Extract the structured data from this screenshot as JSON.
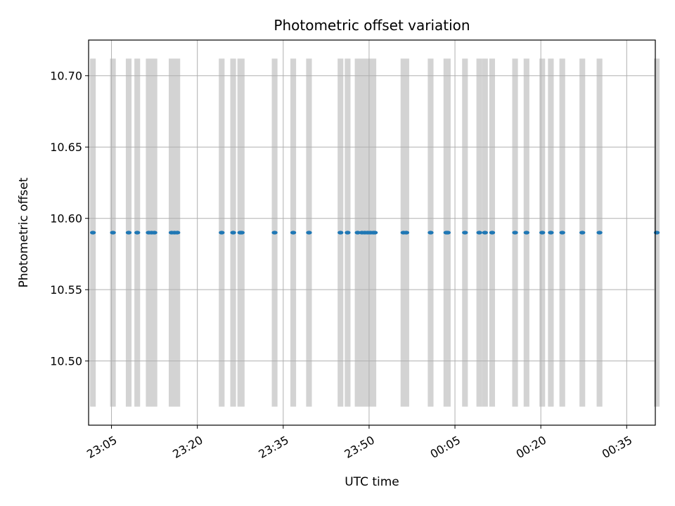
{
  "chart_data": {
    "type": "scatter",
    "title": "Photometric offset variation",
    "xlabel": "UTC time",
    "ylabel": "Photometric offset",
    "x_tick_labels": [
      "23:05",
      "23:20",
      "23:35",
      "23:50",
      "00:05",
      "00:20",
      "00:35"
    ],
    "x_ticks_minutes": [
      1385,
      1400,
      1415,
      1430,
      1445,
      1460,
      1475
    ],
    "y_tick_labels": [
      "10.50",
      "10.55",
      "10.60",
      "10.65",
      "10.70"
    ],
    "y_ticks": [
      10.5,
      10.55,
      10.6,
      10.65,
      10.7
    ],
    "xlim": [
      "23:01",
      "00:40"
    ],
    "ylim": [
      10.455,
      10.725
    ],
    "grid": true,
    "series": [
      {
        "x": [
          "23:01:45",
          "23:05:15",
          "23:08:00",
          "23:09:30",
          "23:11:30",
          "23:12:00",
          "23:12:30",
          "23:15:30",
          "23:16:00",
          "23:16:30",
          "23:24:15",
          "23:26:15",
          "23:27:30",
          "23:27:45",
          "23:33:30",
          "23:36:45",
          "23:39:30",
          "23:45:00",
          "23:46:15",
          "23:48:00",
          "23:48:45",
          "23:49:15",
          "23:49:45",
          "23:50:15",
          "23:50:45",
          "23:51:00",
          "23:56:00",
          "23:56:30",
          "00:00:45",
          "00:03:30",
          "00:03:45",
          "00:06:45",
          "00:09:15",
          "00:10:15",
          "00:11:30",
          "00:15:30",
          "00:17:30",
          "00:20:15",
          "00:21:45",
          "00:23:45",
          "00:27:15",
          "00:30:15",
          "00:40:15"
        ],
        "y": [
          10.59,
          10.59,
          10.59,
          10.59,
          10.59,
          10.59,
          10.59,
          10.59,
          10.59,
          10.59,
          10.59,
          10.59,
          10.59,
          10.59,
          10.59,
          10.59,
          10.59,
          10.59,
          10.59,
          10.59,
          10.59,
          10.59,
          10.59,
          10.59,
          10.59,
          10.59,
          10.59,
          10.59,
          10.59,
          10.59,
          10.59,
          10.59,
          10.59,
          10.59,
          10.59,
          10.59,
          10.59,
          10.59,
          10.59,
          10.59,
          10.59,
          10.59,
          10.59
        ],
        "color": "#1f77b4"
      }
    ],
    "shaded_intervals": [
      [
        "23:01:15",
        "23:02:15"
      ],
      [
        "23:04:45",
        "23:05:45"
      ],
      [
        "23:07:30",
        "23:08:30"
      ],
      [
        "23:09:00",
        "23:10:00"
      ],
      [
        "23:11:00",
        "23:13:00"
      ],
      [
        "23:15:00",
        "23:17:00"
      ],
      [
        "23:23:45",
        "23:24:45"
      ],
      [
        "23:25:45",
        "23:26:45"
      ],
      [
        "23:27:00",
        "23:28:15"
      ],
      [
        "23:33:00",
        "23:34:00"
      ],
      [
        "23:36:15",
        "23:37:15"
      ],
      [
        "23:39:00",
        "23:40:00"
      ],
      [
        "23:44:30",
        "23:45:30"
      ],
      [
        "23:45:45",
        "23:46:45"
      ],
      [
        "23:47:30",
        "23:51:15"
      ],
      [
        "23:55:30",
        "23:57:00"
      ],
      [
        "00:00:15",
        "00:01:15"
      ],
      [
        "00:03:00",
        "00:04:15"
      ],
      [
        "00:06:15",
        "00:07:15"
      ],
      [
        "00:08:45",
        "00:09:45"
      ],
      [
        "00:09:45",
        "00:10:45"
      ],
      [
        "00:11:00",
        "00:12:00"
      ],
      [
        "00:15:00",
        "00:16:00"
      ],
      [
        "00:17:00",
        "00:18:00"
      ],
      [
        "00:19:45",
        "00:20:45"
      ],
      [
        "00:21:15",
        "00:22:15"
      ],
      [
        "00:23:15",
        "00:24:15"
      ],
      [
        "00:26:45",
        "00:27:45"
      ],
      [
        "00:29:45",
        "00:30:45"
      ],
      [
        "00:39:45",
        "00:40:45"
      ]
    ],
    "shade_range": [
      10.468,
      10.712
    ],
    "shade_color": "#d3d3d3"
  }
}
